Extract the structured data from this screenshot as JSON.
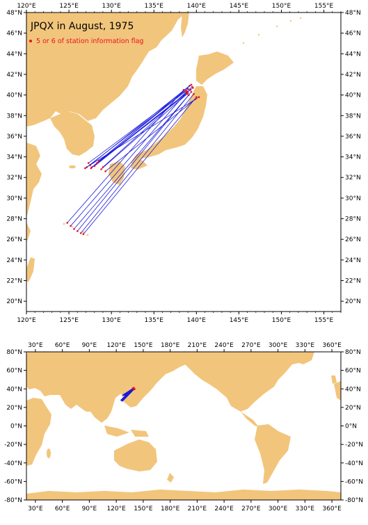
{
  "title": "JPQX in August, 1975",
  "legend": {
    "label": "5 or 6 of station information flag",
    "color": "#e8141a"
  },
  "colors": {
    "land": "#f2c57c",
    "track": "#1a1adc",
    "flag": "#e8141a",
    "frame": "#000000"
  },
  "top_map": {
    "lon_range": [
      120,
      157
    ],
    "lat_range": [
      19,
      48
    ],
    "lon_ticks": [
      "120°E",
      "125°E",
      "130°E",
      "135°E",
      "140°E",
      "145°E",
      "150°E",
      "155°E"
    ],
    "lat_ticks": [
      "20°N",
      "22°N",
      "24°N",
      "26°N",
      "28°N",
      "30°N",
      "32°N",
      "34°N",
      "36°N",
      "38°N",
      "40°N",
      "42°N",
      "44°N",
      "46°N",
      "48°N"
    ]
  },
  "bottom_map": {
    "lon_range": [
      20,
      370
    ],
    "lat_range": [
      -80,
      80
    ],
    "lon_ticks": [
      "30°E",
      "60°E",
      "90°E",
      "120°E",
      "150°E",
      "180°E",
      "210°E",
      "240°E",
      "270°E",
      "300°E",
      "330°E",
      "360°E"
    ],
    "lat_ticks": [
      "80°N",
      "60°N",
      "40°N",
      "20°N",
      "0°N",
      "-20°N",
      "-40°N",
      "-60°N",
      "-80°N"
    ]
  },
  "tracks": [
    [
      [
        139.0,
        40.6
      ],
      [
        127.3,
        33.4
      ]
    ],
    [
      [
        139.2,
        40.9
      ],
      [
        127.5,
        33.2
      ]
    ],
    [
      [
        139.4,
        41.0
      ],
      [
        127.7,
        33.0
      ]
    ],
    [
      [
        138.8,
        40.4
      ],
      [
        127.1,
        33.0
      ]
    ],
    [
      [
        139.0,
        40.2
      ],
      [
        127.6,
        32.9
      ]
    ],
    [
      [
        139.3,
        40.5
      ],
      [
        128.0,
        33.1
      ]
    ],
    [
      [
        139.6,
        40.7
      ],
      [
        128.3,
        33.4
      ]
    ],
    [
      [
        138.6,
        40.3
      ],
      [
        128.5,
        33.6
      ]
    ],
    [
      [
        138.9,
        40.1
      ],
      [
        128.8,
        32.8
      ]
    ],
    [
      [
        139.5,
        40.8
      ],
      [
        129.0,
        33.0
      ]
    ],
    [
      [
        140.3,
        39.8
      ],
      [
        126.9,
        32.9
      ]
    ],
    [
      [
        139.9,
        39.6
      ],
      [
        129.3,
        32.6
      ]
    ],
    [
      [
        138.5,
        40.5
      ],
      [
        124.8,
        27.6
      ]
    ],
    [
      [
        138.9,
        40.3
      ],
      [
        125.2,
        27.3
      ]
    ],
    [
      [
        139.1,
        40.0
      ],
      [
        125.6,
        27.0
      ]
    ],
    [
      [
        139.4,
        40.3
      ],
      [
        126.0,
        26.8
      ]
    ],
    [
      [
        139.7,
        40.1
      ],
      [
        126.4,
        26.6
      ]
    ],
    [
      [
        140.0,
        39.8
      ],
      [
        126.7,
        26.5
      ]
    ]
  ]
}
